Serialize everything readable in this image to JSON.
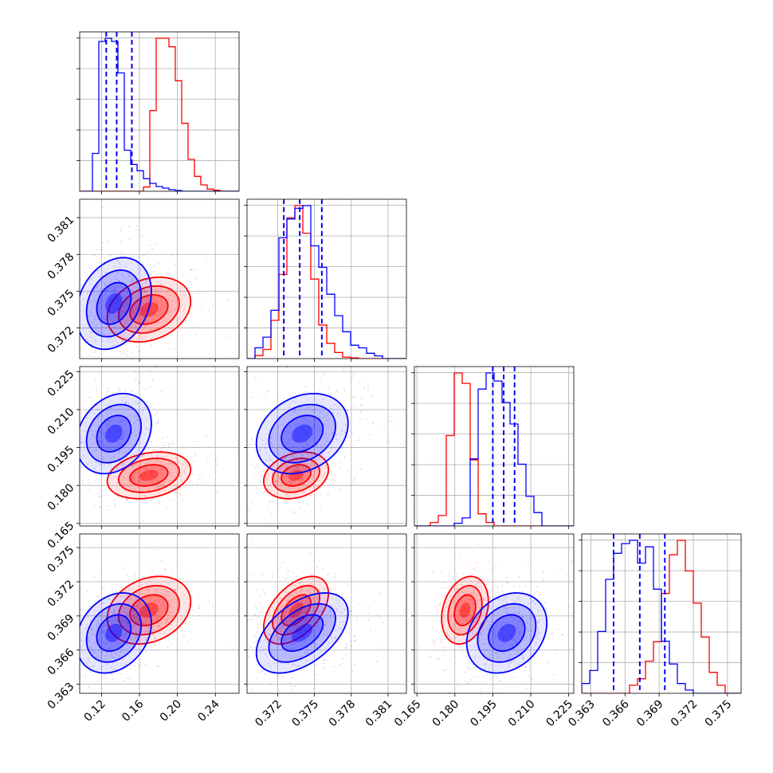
{
  "chart_data": {
    "type": "corner",
    "n_params": 4,
    "grid": true,
    "series": [
      {
        "color": "#ff0000",
        "mean": [
          0.17,
          0.3735,
          0.184,
          0.3695
        ],
        "sigma": [
          0.02,
          0.0012,
          0.0042,
          0.00135
        ],
        "hist": [
          [
            0,
            0,
            0,
            0,
            0,
            0,
            0,
            0,
            0,
            0,
            2,
            38,
            72,
            72,
            68,
            52,
            32,
            15,
            7,
            3,
            1,
            0.5,
            0,
            0,
            0
          ],
          [
            0,
            2,
            6,
            25,
            55,
            92,
            100,
            82,
            52,
            22,
            10,
            4,
            1,
            0.5,
            0,
            0,
            0,
            0,
            0,
            0
          ],
          [
            0,
            0,
            2,
            6,
            52,
            88,
            82,
            38,
            7,
            2,
            0,
            0,
            0,
            0,
            0,
            0,
            0,
            0,
            0,
            0
          ],
          [
            0,
            0,
            0,
            0,
            0,
            0,
            5,
            9,
            20,
            32,
            62,
            86,
            95,
            76,
            56,
            35,
            13,
            5,
            0,
            0
          ]
        ],
        "scatter_extent": [
          [
            0.12,
            0.25
          ],
          [
            0.369,
            0.379
          ],
          [
            0.17,
            0.198
          ],
          [
            0.363,
            0.376
          ]
        ]
      },
      {
        "color": "#0000ff",
        "mean": [
          0.133,
          0.374,
          0.2005,
          0.3675
        ],
        "sigma": [
          0.018,
          0.0017,
          0.0072,
          0.0016
        ],
        "hist": [
          [
            0,
            0,
            24,
            95,
            97,
            95,
            75,
            26,
            17,
            13,
            8,
            5,
            3,
            2,
            1,
            0.5,
            0,
            0,
            0,
            0,
            0,
            0,
            0,
            0,
            0
          ],
          [
            0,
            4,
            8,
            18,
            45,
            52,
            56,
            57,
            42,
            34,
            24,
            16,
            10,
            5,
            4,
            2,
            1,
            0,
            0,
            0
          ],
          [
            0,
            0,
            0,
            0,
            0,
            1,
            3,
            25,
            51,
            57,
            54,
            46,
            38,
            23,
            11,
            5,
            0,
            0,
            0,
            0
          ],
          [
            3,
            7,
            19,
            35,
            43,
            46,
            47,
            40,
            45,
            32,
            16,
            9,
            3,
            1,
            0,
            0,
            0,
            0,
            0,
            0
          ]
        ],
        "scatter_extent": [
          [
            0.1,
            0.22
          ],
          [
            0.369,
            0.381
          ],
          [
            0.175,
            0.225
          ],
          [
            0.363,
            0.374
          ]
        ]
      }
    ],
    "quantile_color": "#0000ff",
    "quantiles": [
      [
        0.125,
        0.136,
        0.152
      ],
      [
        0.3725,
        0.3738,
        0.3756
      ],
      [
        0.195,
        0.1993,
        0.2036
      ],
      [
        0.365,
        0.3673,
        0.3695
      ]
    ],
    "panel_ranges": [
      [
        0.097,
        0.265
      ],
      [
        0.3695,
        0.3825
      ],
      [
        0.164,
        0.227
      ],
      [
        0.3622,
        0.3762
      ]
    ],
    "y_tick_labels": {
      "1": [
        "0.372",
        "0.375",
        "0.378",
        "0.381"
      ],
      "2": [
        "0.165",
        "0.180",
        "0.195",
        "0.210",
        "0.225"
      ],
      "3": [
        "0.363",
        "0.366",
        "0.369",
        "0.372",
        "0.375"
      ]
    },
    "y_tick_values": {
      "1": [
        0.372,
        0.375,
        0.378,
        0.381
      ],
      "2": [
        0.165,
        0.18,
        0.195,
        0.21,
        0.225
      ],
      "3": [
        0.363,
        0.366,
        0.369,
        0.372,
        0.375
      ]
    },
    "x_tick_labels": [
      [
        "0.12",
        "0.16",
        "0.20",
        "0.24"
      ],
      [
        "0.372",
        "0.375",
        "0.378",
        "0.381"
      ],
      [
        "0.165",
        "0.180",
        "0.195",
        "0.210",
        "0.225"
      ],
      [
        "0.363",
        "0.366",
        "0.369",
        "0.372",
        "0.375"
      ]
    ],
    "x_tick_values": [
      [
        0.12,
        0.16,
        0.2,
        0.24
      ],
      [
        0.372,
        0.375,
        0.378,
        0.381
      ],
      [
        0.165,
        0.18,
        0.195,
        0.21,
        0.225
      ],
      [
        0.363,
        0.366,
        0.369,
        0.372,
        0.375
      ]
    ],
    "diag_tick_count": 5
  }
}
